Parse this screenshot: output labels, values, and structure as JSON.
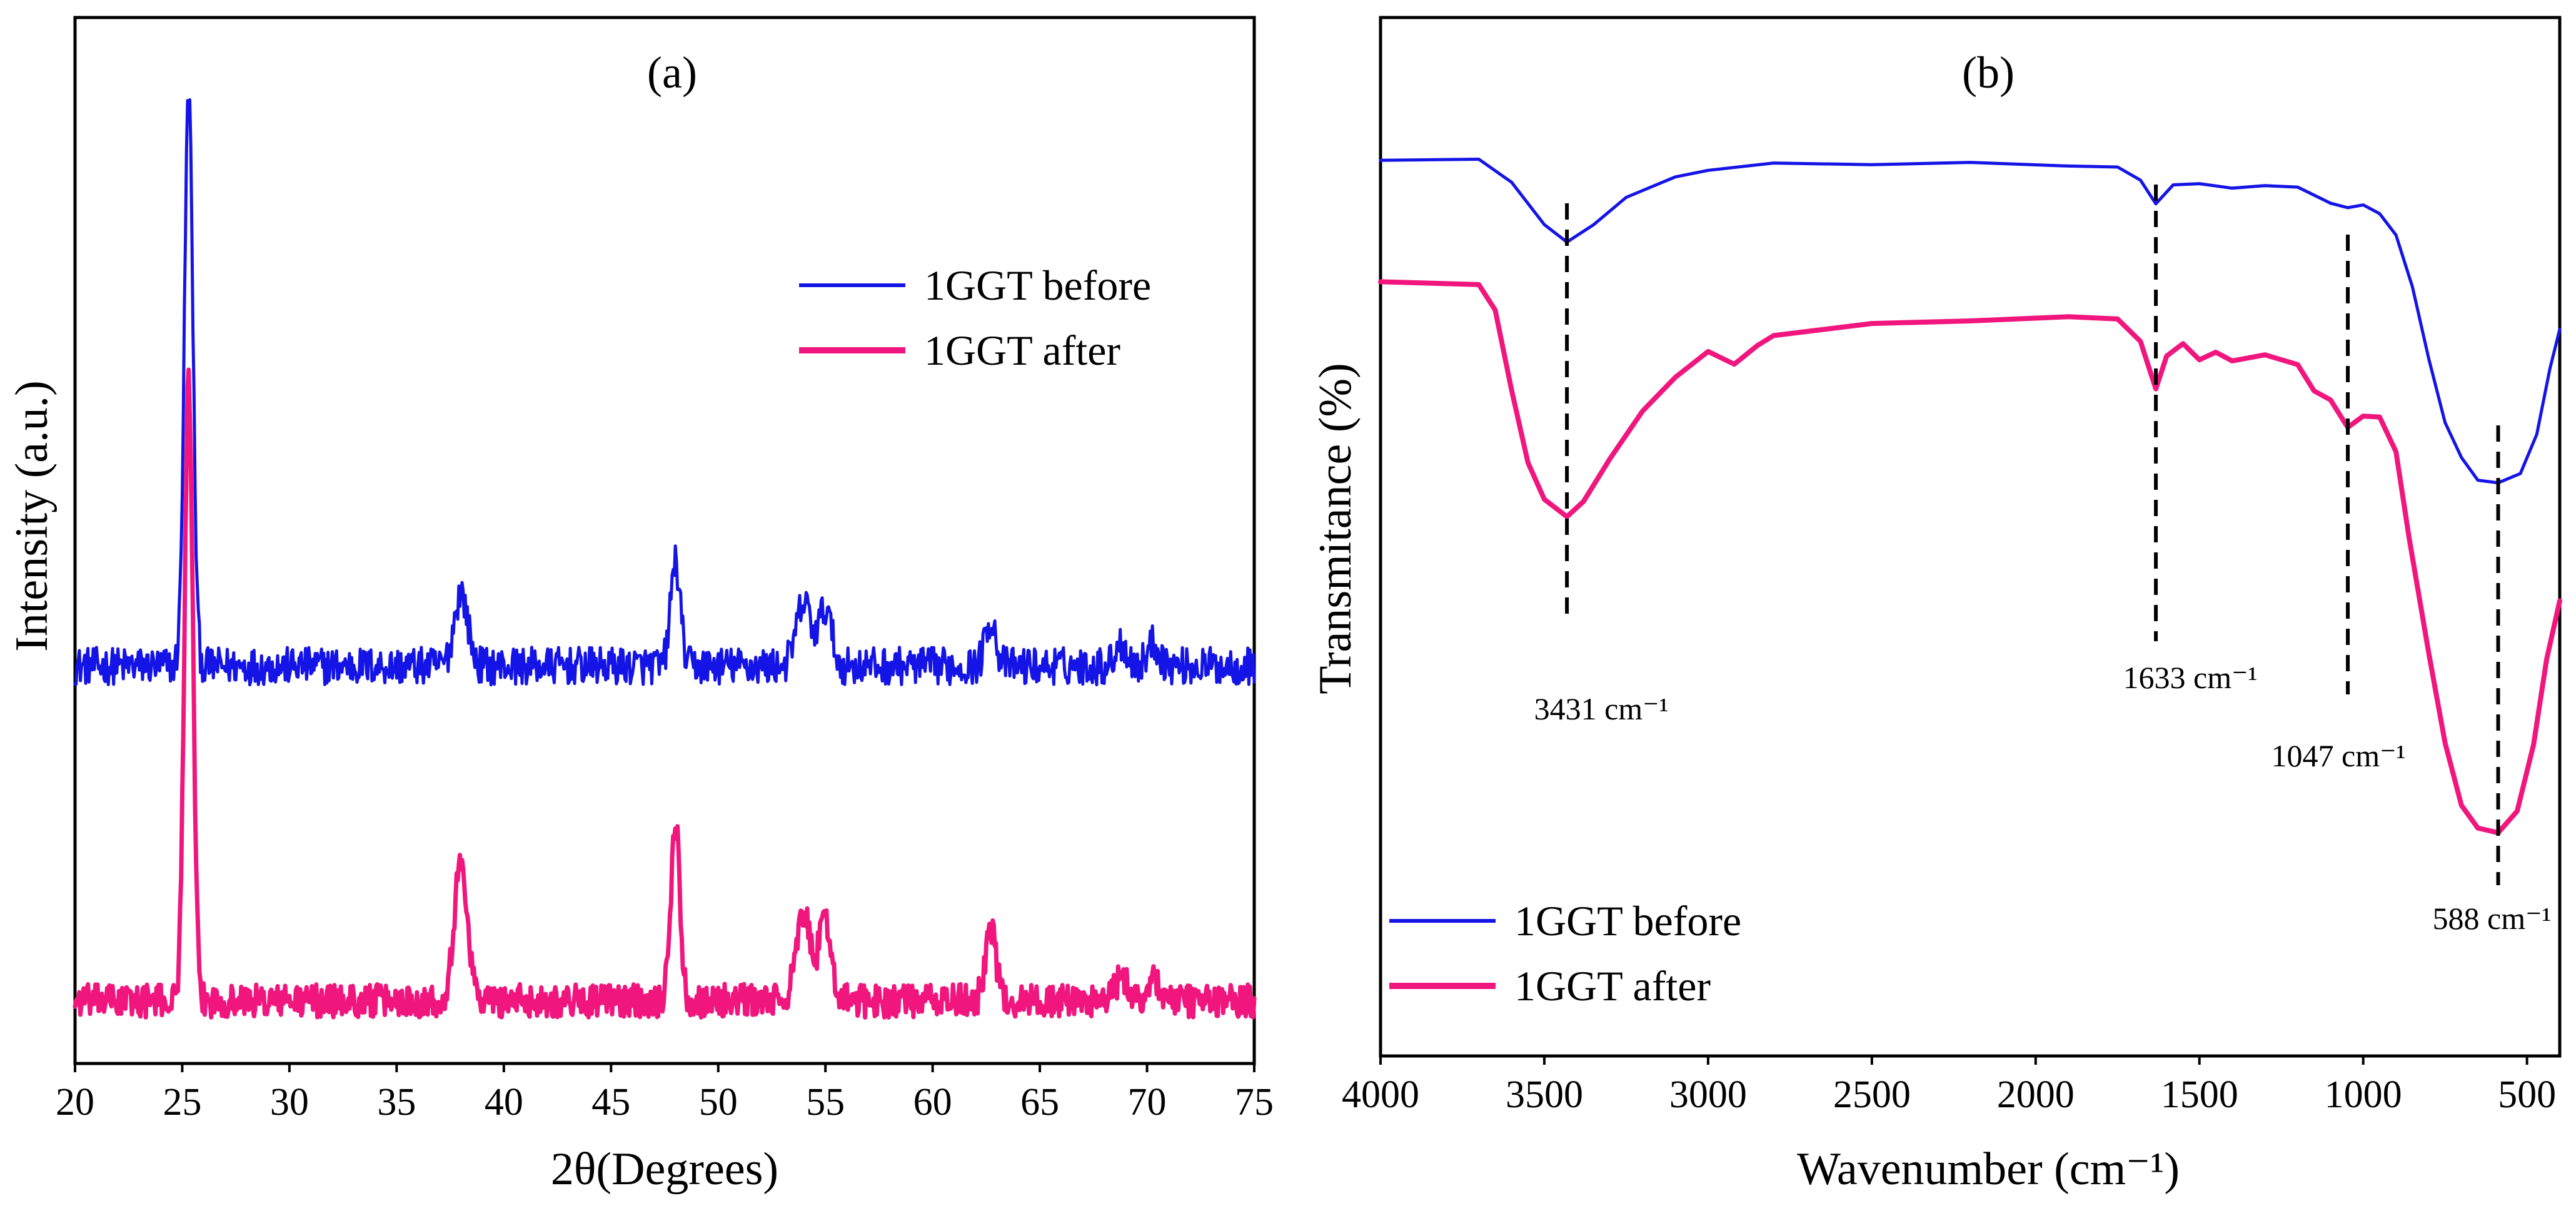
{
  "chart_data": [
    {
      "type": "line",
      "panel_label": "(a)",
      "title": "",
      "xlabel": "2θ(Degrees)",
      "ylabel": "Intensity (a.u.)",
      "xlim": [
        20,
        75
      ],
      "ylim": [
        0,
        1
      ],
      "xticks": [
        20,
        25,
        30,
        35,
        40,
        45,
        50,
        55,
        60,
        65,
        70,
        75
      ],
      "y_ticks_shown": false,
      "legend": {
        "placement": "top-right",
        "entries": [
          "1GGT before",
          "1GGT after"
        ]
      },
      "colors": {
        "1GGT before": "#1414e6",
        "1GGT after": "#f0167e"
      },
      "series": [
        {
          "name": "1GGT before",
          "baseline": 0.38,
          "noise": 0.018,
          "peaks": [
            {
              "x": 25.3,
              "height": 0.55,
              "width": 0.28
            },
            {
              "x": 38.0,
              "height": 0.07,
              "width": 0.45
            },
            {
              "x": 48.0,
              "height": 0.1,
              "width": 0.32
            },
            {
              "x": 54.0,
              "height": 0.06,
              "width": 0.5
            },
            {
              "x": 55.0,
              "height": 0.055,
              "width": 0.4
            },
            {
              "x": 62.7,
              "height": 0.045,
              "width": 0.35
            },
            {
              "x": 68.8,
              "height": 0.022,
              "width": 0.4
            },
            {
              "x": 70.3,
              "height": 0.022,
              "width": 0.4
            }
          ]
        },
        {
          "name": "1GGT after",
          "baseline": 0.06,
          "noise": 0.016,
          "peaks": [
            {
              "x": 25.3,
              "height": 0.59,
              "width": 0.28
            },
            {
              "x": 38.0,
              "height": 0.13,
              "width": 0.45
            },
            {
              "x": 48.0,
              "height": 0.17,
              "width": 0.3
            },
            {
              "x": 54.0,
              "height": 0.08,
              "width": 0.5
            },
            {
              "x": 55.0,
              "height": 0.075,
              "width": 0.4
            },
            {
              "x": 62.7,
              "height": 0.07,
              "width": 0.35
            },
            {
              "x": 68.8,
              "height": 0.022,
              "width": 0.4
            },
            {
              "x": 70.3,
              "height": 0.022,
              "width": 0.4
            }
          ]
        }
      ]
    },
    {
      "type": "line",
      "panel_label": "(b)",
      "title": "",
      "xlabel": "Wavenumber (cm⁻¹)",
      "ylabel": "Transmitance (%)",
      "xlim": [
        4000,
        400
      ],
      "ylim": [
        0,
        1
      ],
      "xticks": [
        4000,
        3500,
        3000,
        2500,
        2000,
        1500,
        1000,
        500
      ],
      "y_ticks_shown": false,
      "legend": {
        "placement": "bottom-left",
        "entries": [
          "1GGT before",
          "1GGT after"
        ]
      },
      "colors": {
        "1GGT before": "#1414e6",
        "1GGT after": "#f0167e"
      },
      "annotations": [
        {
          "text": "3431 cm⁻¹",
          "x": 3431
        },
        {
          "text": "1633 cm⁻¹",
          "x": 1633
        },
        {
          "text": "1047 cm⁻¹",
          "x": 1047
        },
        {
          "text": "588 cm⁻¹",
          "x": 588
        }
      ],
      "series": [
        {
          "name": "1GGT before",
          "points": [
            [
              4000,
              0.862
            ],
            [
              3700,
              0.862
            ],
            [
              3600,
              0.84
            ],
            [
              3500,
              0.8
            ],
            [
              3431,
              0.785
            ],
            [
              3350,
              0.8
            ],
            [
              3250,
              0.825
            ],
            [
              3100,
              0.845
            ],
            [
              3000,
              0.852
            ],
            [
              2800,
              0.858
            ],
            [
              2500,
              0.86
            ],
            [
              2200,
              0.859
            ],
            [
              1900,
              0.857
            ],
            [
              1750,
              0.855
            ],
            [
              1680,
              0.845
            ],
            [
              1633,
              0.822
            ],
            [
              1580,
              0.838
            ],
            [
              1500,
              0.84
            ],
            [
              1400,
              0.835
            ],
            [
              1300,
              0.838
            ],
            [
              1200,
              0.835
            ],
            [
              1100,
              0.82
            ],
            [
              1047,
              0.815
            ],
            [
              1000,
              0.818
            ],
            [
              950,
              0.812
            ],
            [
              900,
              0.79
            ],
            [
              850,
              0.74
            ],
            [
              800,
              0.67
            ],
            [
              750,
              0.61
            ],
            [
              700,
              0.575
            ],
            [
              650,
              0.555
            ],
            [
              588,
              0.55
            ],
            [
              520,
              0.56
            ],
            [
              470,
              0.6
            ],
            [
              430,
              0.66
            ],
            [
              400,
              0.7
            ]
          ]
        },
        {
          "name": "1GGT after",
          "points": [
            [
              4000,
              0.745
            ],
            [
              3700,
              0.742
            ],
            [
              3650,
              0.72
            ],
            [
              3600,
              0.64
            ],
            [
              3550,
              0.57
            ],
            [
              3500,
              0.535
            ],
            [
              3431,
              0.52
            ],
            [
              3380,
              0.535
            ],
            [
              3300,
              0.575
            ],
            [
              3200,
              0.62
            ],
            [
              3100,
              0.655
            ],
            [
              3000,
              0.68
            ],
            [
              2920,
              0.665
            ],
            [
              2850,
              0.685
            ],
            [
              2800,
              0.695
            ],
            [
              2500,
              0.705
            ],
            [
              2200,
              0.708
            ],
            [
              1900,
              0.71
            ],
            [
              1750,
              0.708
            ],
            [
              1680,
              0.69
            ],
            [
              1633,
              0.643
            ],
            [
              1600,
              0.675
            ],
            [
              1550,
              0.685
            ],
            [
              1500,
              0.672
            ],
            [
              1450,
              0.676
            ],
            [
              1400,
              0.67
            ],
            [
              1300,
              0.676
            ],
            [
              1200,
              0.665
            ],
            [
              1150,
              0.64
            ],
            [
              1100,
              0.63
            ],
            [
              1047,
              0.605
            ],
            [
              1000,
              0.615
            ],
            [
              950,
              0.615
            ],
            [
              900,
              0.58
            ],
            [
              860,
              0.5
            ],
            [
              800,
              0.39
            ],
            [
              750,
              0.3
            ],
            [
              700,
              0.24
            ],
            [
              650,
              0.22
            ],
            [
              588,
              0.215
            ],
            [
              530,
              0.235
            ],
            [
              480,
              0.3
            ],
            [
              440,
              0.38
            ],
            [
              400,
              0.44
            ]
          ]
        }
      ]
    }
  ]
}
